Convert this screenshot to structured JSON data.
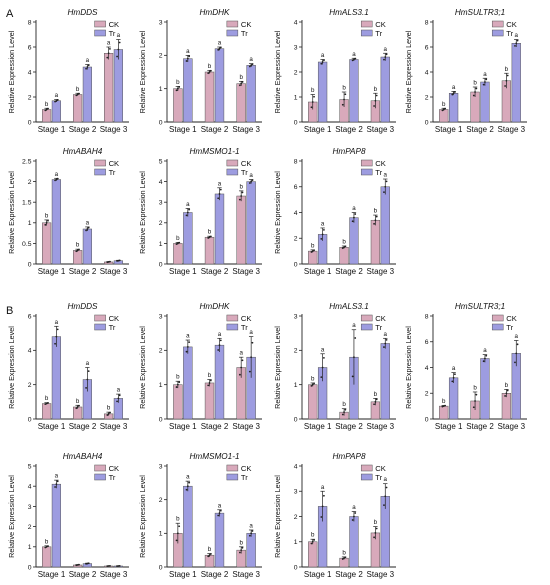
{
  "panel_labels": [
    "A",
    "B"
  ],
  "colors": {
    "CK": "#d8a9bb",
    "Tr": "#9d9ce0",
    "axis": "#222222"
  },
  "chart_data": [
    {
      "type": "bar",
      "group": "A",
      "title": "HmDDS",
      "categories": [
        "Stage 1",
        "Stage 2",
        "Stage 3"
      ],
      "ylabel": "Relative Expression Level",
      "ylim": [
        0,
        8
      ],
      "yticks": [
        0,
        2,
        4,
        6,
        8
      ],
      "series": [
        {
          "name": "CK",
          "values": [
            1.0,
            2.2,
            5.5
          ],
          "errors": [
            0.1,
            0.1,
            0.5
          ],
          "labels": [
            "b",
            "b",
            "a"
          ]
        },
        {
          "name": "Tr",
          "values": [
            1.7,
            4.4,
            5.8
          ],
          "errors": [
            0.1,
            0.2,
            0.8
          ],
          "labels": [
            "a",
            "a",
            "a"
          ]
        }
      ]
    },
    {
      "type": "bar",
      "group": "A",
      "title": "HmDHK",
      "categories": [
        "Stage 1",
        "Stage 2",
        "Stage 3"
      ],
      "ylabel": "Relative Expression Level",
      "ylim": [
        0,
        3
      ],
      "yticks": [
        0,
        1,
        2,
        3
      ],
      "series": [
        {
          "name": "CK",
          "values": [
            1.0,
            1.5,
            1.15
          ],
          "errors": [
            0.07,
            0.05,
            0.07
          ],
          "labels": [
            "b",
            "b",
            "b"
          ]
        },
        {
          "name": "Tr",
          "values": [
            1.9,
            2.2,
            1.7
          ],
          "errors": [
            0.1,
            0.05,
            0.05
          ],
          "labels": [
            "a",
            "a",
            "a"
          ]
        }
      ]
    },
    {
      "type": "bar",
      "group": "A",
      "title": "HmALS3.1",
      "categories": [
        "Stage 1",
        "Stage 2",
        "Stage 3"
      ],
      "ylabel": "Relative Expression Level",
      "ylim": [
        0,
        4
      ],
      "yticks": [
        0,
        1,
        2,
        3,
        4
      ],
      "series": [
        {
          "name": "CK",
          "values": [
            0.8,
            0.9,
            0.85
          ],
          "errors": [
            0.3,
            0.3,
            0.3
          ],
          "labels": [
            "b",
            "b",
            "b"
          ]
        },
        {
          "name": "Tr",
          "values": [
            2.4,
            2.5,
            2.6
          ],
          "errors": [
            0.1,
            0.05,
            0.15
          ],
          "labels": [
            "a",
            "a",
            "a"
          ]
        }
      ]
    },
    {
      "type": "bar",
      "group": "A",
      "title": "HmSULTR3;1",
      "categories": [
        "Stage 1",
        "Stage 2",
        "Stage 3"
      ],
      "ylabel": "Relative Expression Level",
      "ylim": [
        0,
        8
      ],
      "yticks": [
        0,
        2,
        4,
        6,
        8
      ],
      "series": [
        {
          "name": "CK",
          "values": [
            1.0,
            2.4,
            3.3
          ],
          "errors": [
            0.1,
            0.4,
            0.6
          ],
          "labels": [
            "b",
            "b",
            "b"
          ]
        },
        {
          "name": "Tr",
          "values": [
            2.3,
            3.2,
            6.3
          ],
          "errors": [
            0.15,
            0.3,
            0.3
          ],
          "labels": [
            "a",
            "a",
            "a"
          ]
        }
      ]
    },
    {
      "type": "bar",
      "group": "A",
      "title": "HmABAH4",
      "categories": [
        "Stage 1",
        "Stage 2",
        "Stage 3"
      ],
      "ylabel": "Relative Expression Level",
      "ylim": [
        0,
        2.5
      ],
      "yticks": [
        0,
        0.5,
        1,
        1.5,
        2,
        2.5
      ],
      "series": [
        {
          "name": "CK",
          "values": [
            1.0,
            0.33,
            0.05
          ],
          "errors": [
            0.07,
            0.03,
            0.01
          ],
          "labels": [
            "b",
            "b",
            ""
          ]
        },
        {
          "name": "Tr",
          "values": [
            2.05,
            0.85,
            0.08
          ],
          "errors": [
            0.03,
            0.05,
            0.01
          ],
          "labels": [
            "a",
            "a",
            ""
          ]
        }
      ]
    },
    {
      "type": "bar",
      "group": "A",
      "title": "HmMSMO1-1",
      "categories": [
        "Stage 1",
        "Stage 2",
        "Stage 3"
      ],
      "ylabel": "Relative Expression Level",
      "ylim": [
        0,
        5
      ],
      "yticks": [
        0,
        1,
        2,
        3,
        4,
        5
      ],
      "series": [
        {
          "name": "CK",
          "values": [
            1.0,
            1.3,
            3.3
          ],
          "errors": [
            0.05,
            0.05,
            0.25
          ],
          "labels": [
            "b",
            "b",
            "b"
          ]
        },
        {
          "name": "Tr",
          "values": [
            2.5,
            3.4,
            4.0
          ],
          "errors": [
            0.2,
            0.3,
            0.1
          ],
          "labels": [
            "a",
            "a",
            "a"
          ]
        }
      ]
    },
    {
      "type": "bar",
      "group": "A",
      "title": "HmPAP8",
      "categories": [
        "Stage 1",
        "Stage 2",
        "Stage 3"
      ],
      "ylabel": "Relative Expression Level",
      "ylim": [
        0,
        8
      ],
      "yticks": [
        0,
        2,
        4,
        6,
        8
      ],
      "series": [
        {
          "name": "CK",
          "values": [
            1.0,
            1.3,
            3.4
          ],
          "errors": [
            0.1,
            0.1,
            0.4
          ],
          "labels": [
            "b",
            "b",
            "b"
          ]
        },
        {
          "name": "Tr",
          "values": [
            2.3,
            3.6,
            6.0
          ],
          "errors": [
            0.5,
            0.4,
            0.6
          ],
          "labels": [
            "a",
            "a",
            "a"
          ]
        }
      ]
    },
    {
      "type": "bar",
      "group": "B",
      "title": "HmDDS",
      "categories": [
        "Stage 1",
        "Stage 2",
        "Stage 3"
      ],
      "ylabel": "Relative Expression Level",
      "ylim": [
        0,
        6
      ],
      "yticks": [
        0,
        2,
        4,
        6
      ],
      "series": [
        {
          "name": "CK",
          "values": [
            0.9,
            0.7,
            0.3
          ],
          "errors": [
            0.05,
            0.1,
            0.1
          ],
          "labels": [
            "b",
            "b",
            "b"
          ]
        },
        {
          "name": "Tr",
          "values": [
            4.8,
            2.3,
            1.2
          ],
          "errors": [
            0.6,
            0.7,
            0.25
          ],
          "labels": [
            "a",
            "a",
            "a"
          ]
        }
      ]
    },
    {
      "type": "bar",
      "group": "B",
      "title": "HmDHK",
      "categories": [
        "Stage 1",
        "Stage 2",
        "Stage 3"
      ],
      "ylabel": "Relative Expression Level",
      "ylim": [
        0,
        3
      ],
      "yticks": [
        0,
        1,
        2,
        3
      ],
      "series": [
        {
          "name": "CK",
          "values": [
            1.0,
            1.05,
            1.5
          ],
          "errors": [
            0.1,
            0.1,
            0.3
          ],
          "labels": [
            "b",
            "b",
            "a"
          ]
        },
        {
          "name": "Tr",
          "values": [
            2.1,
            2.15,
            1.8
          ],
          "errors": [
            0.2,
            0.2,
            0.6
          ],
          "labels": [
            "a",
            "a",
            "a"
          ]
        }
      ]
    },
    {
      "type": "bar",
      "group": "B",
      "title": "HmALS3.1",
      "categories": [
        "Stage 1",
        "Stage 2",
        "Stage 3"
      ],
      "ylabel": "Relative Expression Level",
      "ylim": [
        0,
        3
      ],
      "yticks": [
        0,
        1,
        2,
        3
      ],
      "series": [
        {
          "name": "CK",
          "values": [
            1.0,
            0.2,
            0.5
          ],
          "errors": [
            0.05,
            0.1,
            0.1
          ],
          "labels": [
            "b",
            "b",
            "b"
          ]
        },
        {
          "name": "Tr",
          "values": [
            1.5,
            1.8,
            2.2
          ],
          "errors": [
            0.4,
            0.8,
            0.15
          ],
          "labels": [
            "a",
            "a",
            "a"
          ]
        }
      ]
    },
    {
      "type": "bar",
      "group": "B",
      "title": "HmSULTR3;1",
      "categories": [
        "Stage 1",
        "Stage 2",
        "Stage 3"
      ],
      "ylabel": "Relative Expression Level",
      "ylim": [
        0,
        8
      ],
      "yticks": [
        0,
        2,
        4,
        6,
        8
      ],
      "series": [
        {
          "name": "CK",
          "values": [
            1.0,
            1.4,
            2.0
          ],
          "errors": [
            0.05,
            0.7,
            0.3
          ],
          "labels": [
            "b",
            "b",
            "b"
          ]
        },
        {
          "name": "Tr",
          "values": [
            3.2,
            4.7,
            5.1
          ],
          "errors": [
            0.4,
            0.3,
            1.0
          ],
          "labels": [
            "a",
            "a",
            "a"
          ]
        }
      ]
    },
    {
      "type": "bar",
      "group": "B",
      "title": "HmABAH4",
      "categories": [
        "Stage 1",
        "Stage 2",
        "Stage 3"
      ],
      "ylabel": "Relative Expression Level",
      "ylim": [
        0,
        5
      ],
      "yticks": [
        0,
        1,
        2,
        3,
        4,
        5
      ],
      "series": [
        {
          "name": "CK",
          "values": [
            1.0,
            0.1,
            0.05
          ],
          "errors": [
            0.05,
            0.02,
            0.01
          ],
          "labels": [
            "b",
            "",
            ""
          ]
        },
        {
          "name": "Tr",
          "values": [
            4.1,
            0.17,
            0.05
          ],
          "errors": [
            0.2,
            0.02,
            0.01
          ],
          "labels": [
            "a",
            "",
            ""
          ]
        }
      ]
    },
    {
      "type": "bar",
      "group": "B",
      "title": "HmMSMO1-1",
      "categories": [
        "Stage 1",
        "Stage 2",
        "Stage 3"
      ],
      "ylabel": "Relative Expression Level",
      "ylim": [
        0,
        3
      ],
      "yticks": [
        0,
        1,
        2,
        3
      ],
      "series": [
        {
          "name": "CK",
          "values": [
            1.0,
            0.35,
            0.5
          ],
          "errors": [
            0.3,
            0.05,
            0.1
          ],
          "labels": [
            "b",
            "b",
            "b"
          ]
        },
        {
          "name": "Tr",
          "values": [
            2.4,
            1.6,
            1.0
          ],
          "errors": [
            0.15,
            0.1,
            0.1
          ],
          "labels": [
            "a",
            "a",
            "a"
          ]
        }
      ]
    },
    {
      "type": "bar",
      "group": "B",
      "title": "HmPAP8",
      "categories": [
        "Stage 1",
        "Stage 2",
        "Stage 3"
      ],
      "ylabel": "Relative Expression Level",
      "ylim": [
        0,
        4
      ],
      "yticks": [
        0,
        1,
        2,
        3,
        4
      ],
      "series": [
        {
          "name": "CK",
          "values": [
            1.0,
            0.35,
            1.35
          ],
          "errors": [
            0.1,
            0.05,
            0.25
          ],
          "labels": [
            "b",
            "b",
            "b"
          ]
        },
        {
          "name": "Tr",
          "values": [
            2.4,
            2.0,
            2.8
          ],
          "errors": [
            0.6,
            0.2,
            0.5
          ],
          "labels": [
            "a",
            "a",
            "a"
          ]
        }
      ]
    }
  ]
}
